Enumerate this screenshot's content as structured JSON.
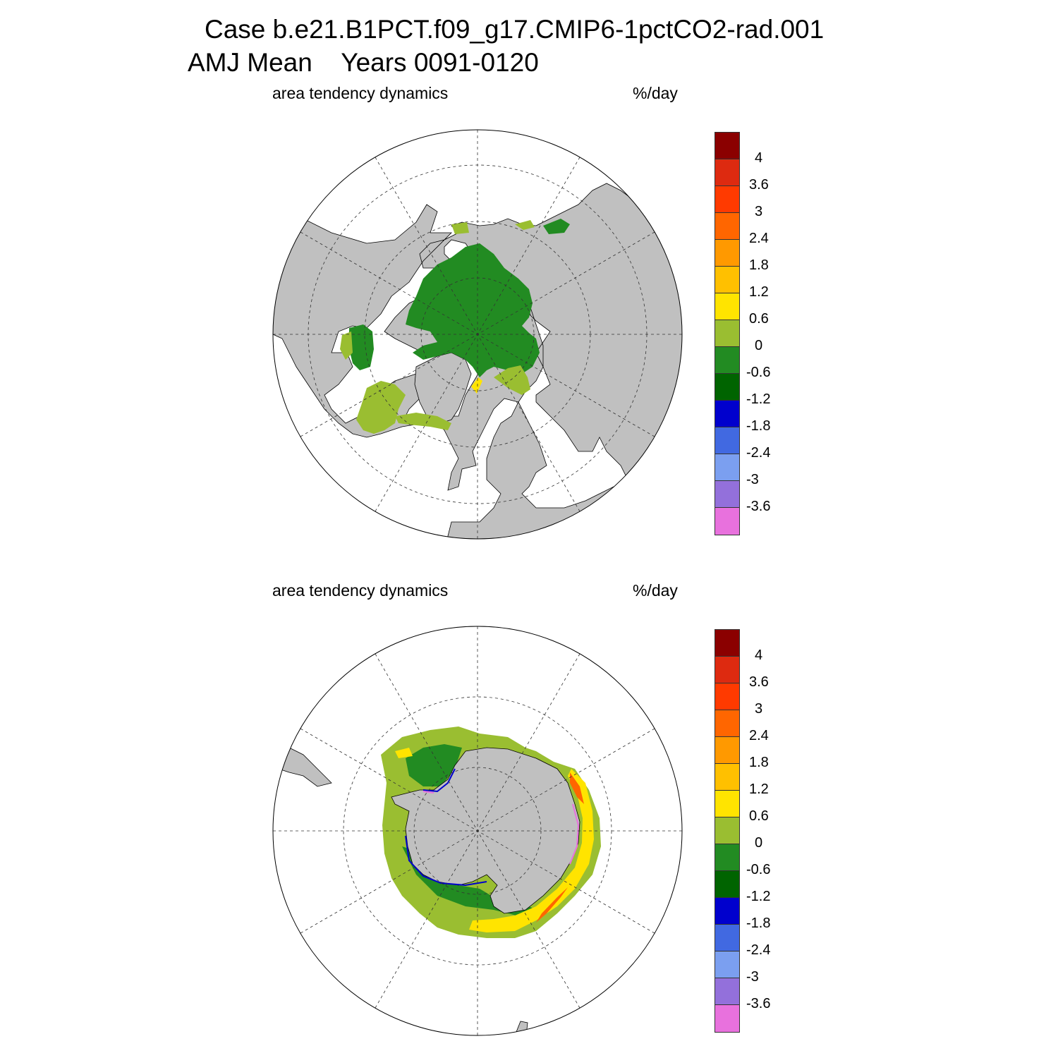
{
  "title": {
    "line1": "Case b.e21.B1PCT.f09_g17.CMIP6-1pctCO2-rad.001",
    "line2": "AMJ Mean    Years 0091-0120"
  },
  "panels": [
    {
      "hemisphere": "north",
      "left_label": "area tendency dynamics",
      "right_label": "%/day"
    },
    {
      "hemisphere": "south",
      "left_label": "area tendency dynamics",
      "right_label": "%/day"
    }
  ],
  "colorbar": {
    "labels": [
      "4",
      "3.6",
      "3",
      "2.4",
      "1.8",
      "1.2",
      "0.6",
      "0",
      "-0.6",
      "-1.2",
      "-1.8",
      "-2.4",
      "-3",
      "-3.6"
    ],
    "colors": [
      "#8b0000",
      "#dd2a10",
      "#ff3a00",
      "#ff6600",
      "#ff9900",
      "#ffc000",
      "#ffe400",
      "#9abe31",
      "#228b22",
      "#006400",
      "#0000cd",
      "#4169e1",
      "#7b9ff0",
      "#9370db",
      "#e871dd"
    ]
  },
  "colors": {
    "land": "#c0c0c0",
    "ocean": "#ffffff"
  }
}
